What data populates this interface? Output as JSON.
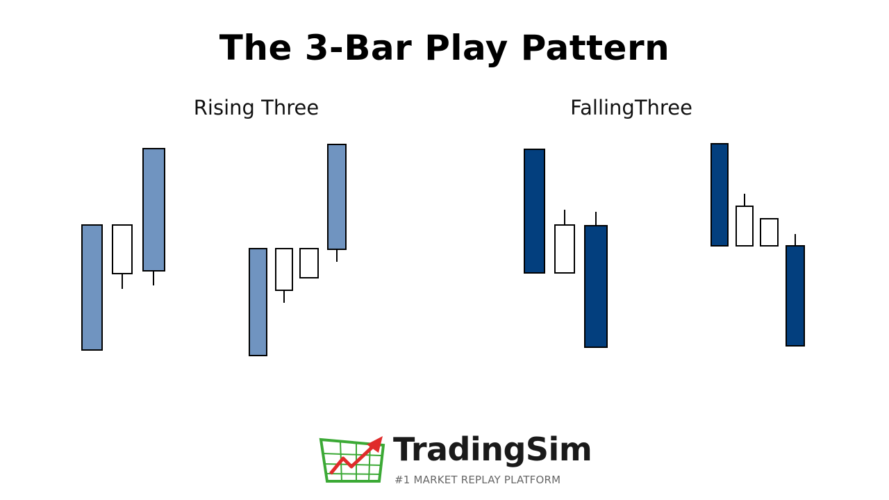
{
  "title": "The 3-Bar Play Pattern",
  "patterns": [
    {
      "label": "Rising Three"
    },
    {
      "label": "FallingThree"
    }
  ],
  "colors": {
    "rising_body": "#7094C0",
    "falling_body": "#033F7E",
    "hollow_body": "#FFFFFF",
    "outline": "#000000",
    "logo_green": "#3BA935",
    "logo_red": "#E02B2B"
  },
  "logo": {
    "name": "TradingSim",
    "tagline": "#1 MARKET REPLAY PLATFORM"
  }
}
